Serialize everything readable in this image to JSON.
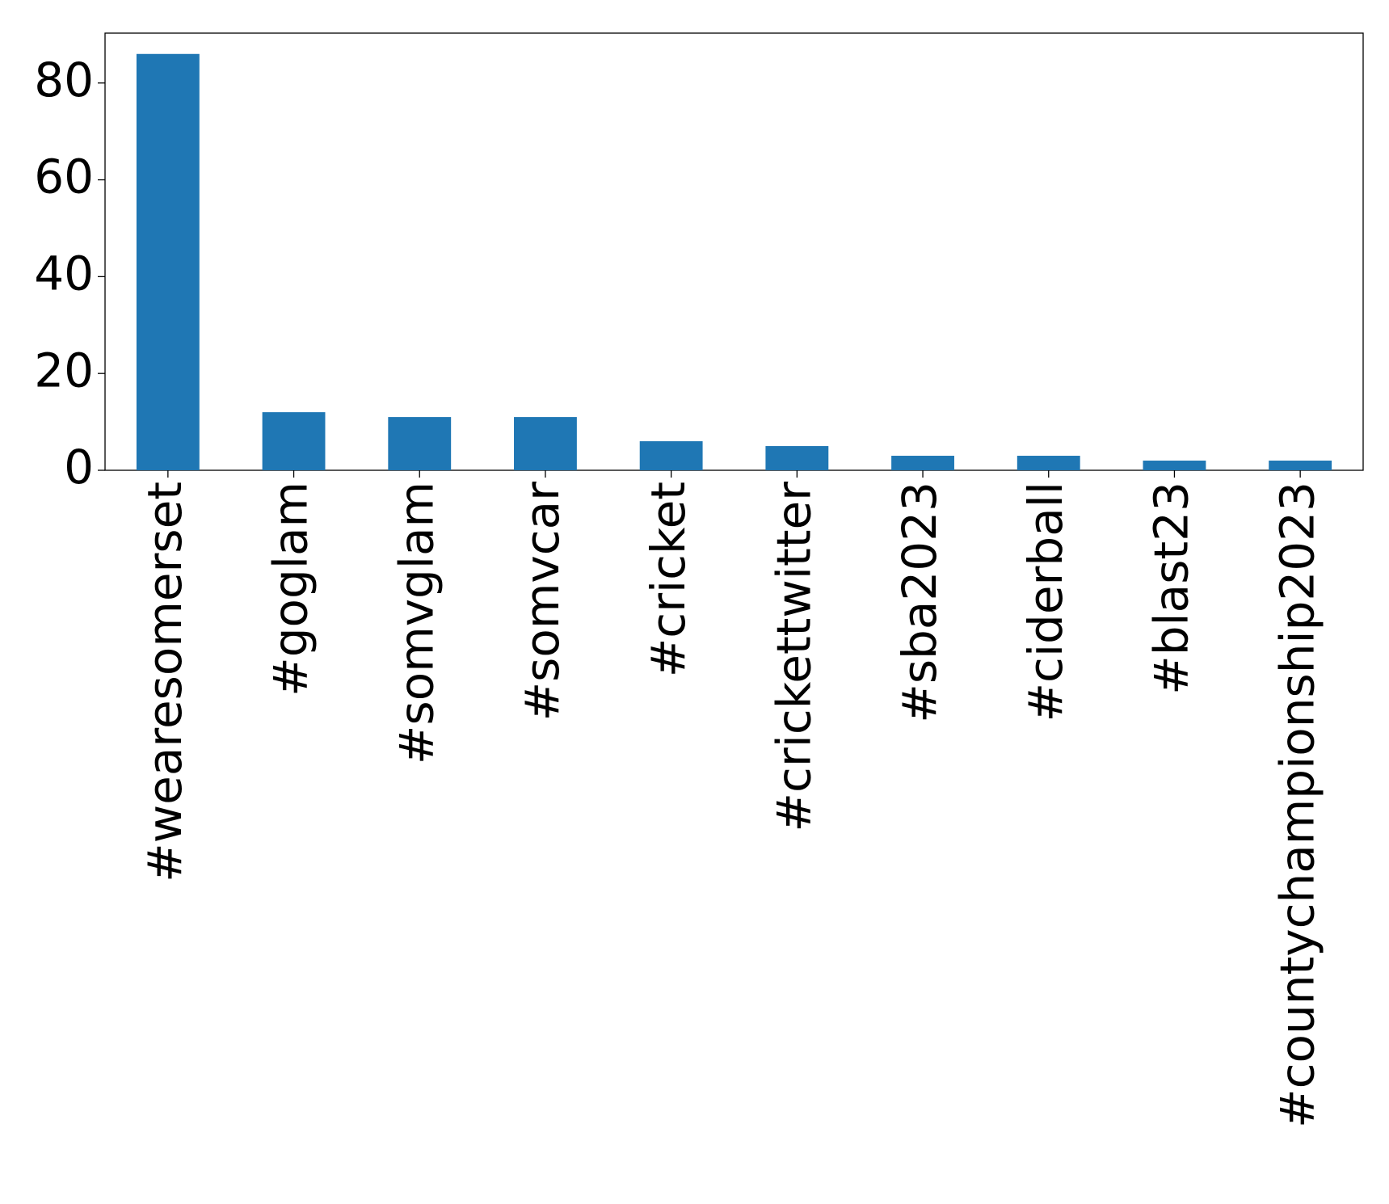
{
  "chart_data": {
    "type": "bar",
    "categories": [
      "#wearesomerset",
      "#goglam",
      "#somvglam",
      "#somvcar",
      "#cricket",
      "#crickettwitter",
      "#sba2023",
      "#ciderball",
      "#blast23",
      "#countychampionship2023"
    ],
    "values": [
      86,
      12,
      11,
      11,
      6,
      5,
      3,
      3,
      2,
      2
    ],
    "color": "#1f77b4",
    "ylim": [
      0,
      90.3
    ],
    "yticks": [
      0,
      20,
      40,
      60,
      80
    ],
    "grid": false
  }
}
